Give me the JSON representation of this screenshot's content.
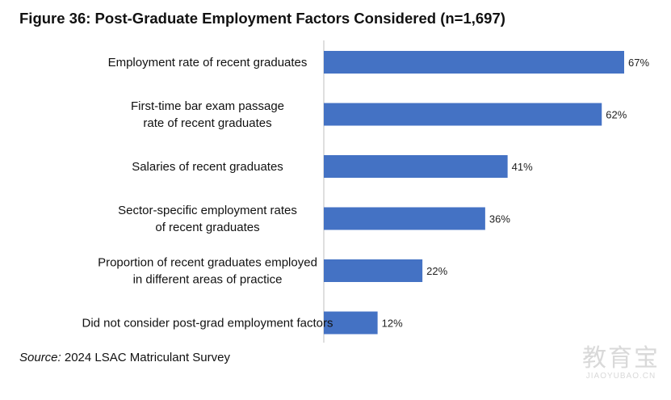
{
  "title": "Figure 36: Post-Graduate Employment Factors Considered (n=1,697)",
  "source": {
    "prefix": "Source:",
    "text": " 2024 LSAC Matriculant Survey"
  },
  "watermark": {
    "logo_text": "教育宝",
    "url": "JIAOYUBAO.CN"
  },
  "chart_data": {
    "type": "bar",
    "orientation": "horizontal",
    "categories": [
      [
        "Employment rate of recent graduates"
      ],
      [
        "First-time bar exam passage",
        "rate of recent graduates"
      ],
      [
        "Salaries of recent graduates"
      ],
      [
        "Sector-specific employment rates",
        "of recent graduates"
      ],
      [
        "Proportion of recent graduates employed",
        "in different areas of practice"
      ],
      [
        "Did not consider post-grad employment factors"
      ]
    ],
    "values": [
      67,
      62,
      41,
      36,
      22,
      12
    ],
    "value_labels": [
      "67%",
      "62%",
      "41%",
      "36%",
      "22%",
      "12%"
    ],
    "value_unit": "%",
    "xlim": [
      0,
      100
    ],
    "bar_color": "#4472c4",
    "grid": false
  }
}
